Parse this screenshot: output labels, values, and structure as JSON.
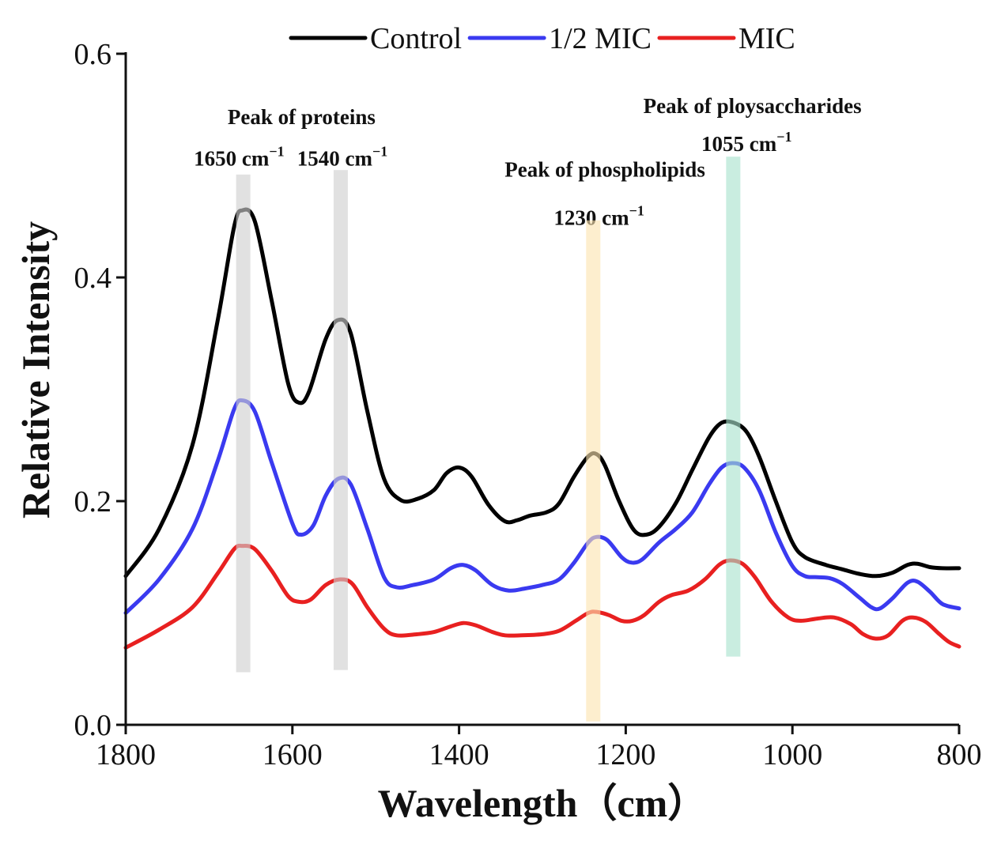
{
  "chart_data": {
    "type": "line",
    "title": "",
    "xlabel": "Wavelength（cm）",
    "ylabel": "Relative Intensity",
    "xlim": [
      1800,
      800
    ],
    "ylim": [
      0,
      0.6
    ],
    "xticks": [
      1800,
      1600,
      1400,
      1200,
      1000,
      800
    ],
    "xtick_labels": [
      "1800",
      "1600",
      "1400",
      "1200",
      "1000",
      "800"
    ],
    "yticks": [
      0,
      0.2,
      0.4,
      0.6
    ],
    "ytick_labels": [
      "0.0",
      "0.2",
      "0.4",
      "0.6"
    ],
    "legend_position": "top",
    "series": [
      {
        "name": "Control",
        "color": "#000000",
        "points": [
          [
            1800,
            0.133
          ],
          [
            1760,
            0.175
          ],
          [
            1720,
            0.25
          ],
          [
            1690,
            0.36
          ],
          [
            1670,
            0.445
          ],
          [
            1660,
            0.46
          ],
          [
            1645,
            0.45
          ],
          [
            1625,
            0.38
          ],
          [
            1605,
            0.305
          ],
          [
            1592,
            0.288
          ],
          [
            1580,
            0.298
          ],
          [
            1560,
            0.345
          ],
          [
            1545,
            0.362
          ],
          [
            1530,
            0.35
          ],
          [
            1510,
            0.28
          ],
          [
            1490,
            0.22
          ],
          [
            1470,
            0.201
          ],
          [
            1450,
            0.202
          ],
          [
            1430,
            0.21
          ],
          [
            1415,
            0.225
          ],
          [
            1400,
            0.23
          ],
          [
            1385,
            0.222
          ],
          [
            1365,
            0.197
          ],
          [
            1345,
            0.182
          ],
          [
            1330,
            0.183
          ],
          [
            1315,
            0.187
          ],
          [
            1295,
            0.19
          ],
          [
            1280,
            0.198
          ],
          [
            1262,
            0.222
          ],
          [
            1245,
            0.24
          ],
          [
            1235,
            0.242
          ],
          [
            1225,
            0.232
          ],
          [
            1208,
            0.2
          ],
          [
            1190,
            0.174
          ],
          [
            1175,
            0.17
          ],
          [
            1160,
            0.177
          ],
          [
            1140,
            0.198
          ],
          [
            1120,
            0.228
          ],
          [
            1100,
            0.257
          ],
          [
            1085,
            0.27
          ],
          [
            1070,
            0.27
          ],
          [
            1055,
            0.262
          ],
          [
            1040,
            0.24
          ],
          [
            1020,
            0.2
          ],
          [
            1000,
            0.163
          ],
          [
            985,
            0.15
          ],
          [
            960,
            0.143
          ],
          [
            940,
            0.139
          ],
          [
            920,
            0.135
          ],
          [
            900,
            0.133
          ],
          [
            880,
            0.136
          ],
          [
            862,
            0.143
          ],
          [
            850,
            0.144
          ],
          [
            835,
            0.141
          ],
          [
            820,
            0.14
          ],
          [
            800,
            0.14
          ]
        ]
      },
      {
        "name": "1/2 MIC",
        "color": "#3a3af0",
        "points": [
          [
            1800,
            0.1
          ],
          [
            1760,
            0.13
          ],
          [
            1720,
            0.175
          ],
          [
            1690,
            0.235
          ],
          [
            1670,
            0.282
          ],
          [
            1660,
            0.29
          ],
          [
            1645,
            0.28
          ],
          [
            1625,
            0.235
          ],
          [
            1600,
            0.18
          ],
          [
            1590,
            0.17
          ],
          [
            1575,
            0.178
          ],
          [
            1560,
            0.205
          ],
          [
            1545,
            0.22
          ],
          [
            1530,
            0.215
          ],
          [
            1510,
            0.175
          ],
          [
            1490,
            0.132
          ],
          [
            1475,
            0.123
          ],
          [
            1455,
            0.125
          ],
          [
            1430,
            0.13
          ],
          [
            1410,
            0.14
          ],
          [
            1395,
            0.143
          ],
          [
            1380,
            0.138
          ],
          [
            1360,
            0.125
          ],
          [
            1340,
            0.12
          ],
          [
            1320,
            0.122
          ],
          [
            1300,
            0.125
          ],
          [
            1280,
            0.13
          ],
          [
            1262,
            0.145
          ],
          [
            1245,
            0.163
          ],
          [
            1235,
            0.168
          ],
          [
            1222,
            0.165
          ],
          [
            1205,
            0.15
          ],
          [
            1193,
            0.145
          ],
          [
            1180,
            0.148
          ],
          [
            1160,
            0.163
          ],
          [
            1140,
            0.175
          ],
          [
            1120,
            0.19
          ],
          [
            1100,
            0.215
          ],
          [
            1085,
            0.23
          ],
          [
            1072,
            0.234
          ],
          [
            1058,
            0.23
          ],
          [
            1040,
            0.21
          ],
          [
            1020,
            0.172
          ],
          [
            1000,
            0.142
          ],
          [
            985,
            0.133
          ],
          [
            970,
            0.132
          ],
          [
            955,
            0.131
          ],
          [
            940,
            0.126
          ],
          [
            920,
            0.114
          ],
          [
            905,
            0.105
          ],
          [
            895,
            0.104
          ],
          [
            880,
            0.113
          ],
          [
            862,
            0.127
          ],
          [
            850,
            0.128
          ],
          [
            835,
            0.119
          ],
          [
            820,
            0.108
          ],
          [
            800,
            0.104
          ]
        ]
      },
      {
        "name": "MIC",
        "color": "#e82020",
        "points": [
          [
            1800,
            0.069
          ],
          [
            1760,
            0.085
          ],
          [
            1720,
            0.105
          ],
          [
            1690,
            0.135
          ],
          [
            1670,
            0.157
          ],
          [
            1660,
            0.16
          ],
          [
            1645,
            0.157
          ],
          [
            1625,
            0.138
          ],
          [
            1605,
            0.115
          ],
          [
            1592,
            0.11
          ],
          [
            1578,
            0.112
          ],
          [
            1560,
            0.125
          ],
          [
            1543,
            0.13
          ],
          [
            1528,
            0.126
          ],
          [
            1510,
            0.105
          ],
          [
            1490,
            0.086
          ],
          [
            1475,
            0.08
          ],
          [
            1450,
            0.081
          ],
          [
            1430,
            0.083
          ],
          [
            1410,
            0.088
          ],
          [
            1395,
            0.091
          ],
          [
            1380,
            0.089
          ],
          [
            1360,
            0.083
          ],
          [
            1345,
            0.08
          ],
          [
            1325,
            0.08
          ],
          [
            1300,
            0.081
          ],
          [
            1280,
            0.084
          ],
          [
            1260,
            0.093
          ],
          [
            1245,
            0.1
          ],
          [
            1235,
            0.101
          ],
          [
            1220,
            0.098
          ],
          [
            1205,
            0.093
          ],
          [
            1192,
            0.093
          ],
          [
            1178,
            0.098
          ],
          [
            1160,
            0.11
          ],
          [
            1145,
            0.116
          ],
          [
            1125,
            0.12
          ],
          [
            1105,
            0.13
          ],
          [
            1088,
            0.143
          ],
          [
            1075,
            0.147
          ],
          [
            1060,
            0.144
          ],
          [
            1045,
            0.132
          ],
          [
            1025,
            0.11
          ],
          [
            1005,
            0.096
          ],
          [
            990,
            0.093
          ],
          [
            970,
            0.095
          ],
          [
            950,
            0.096
          ],
          [
            930,
            0.09
          ],
          [
            915,
            0.081
          ],
          [
            900,
            0.077
          ],
          [
            885,
            0.08
          ],
          [
            868,
            0.093
          ],
          [
            855,
            0.096
          ],
          [
            840,
            0.092
          ],
          [
            825,
            0.082
          ],
          [
            812,
            0.074
          ],
          [
            800,
            0.07
          ]
        ]
      }
    ],
    "highlight_bands": [
      {
        "x": 1659,
        "y_from": 0.047,
        "y_to": 0.492,
        "color": "#cfcfcf"
      },
      {
        "x": 1542,
        "y_from": 0.049,
        "y_to": 0.496,
        "color": "#cfcfcf"
      },
      {
        "x": 1239,
        "y_from": 0.003,
        "y_to": 0.451,
        "color": "#fbe3b0"
      },
      {
        "x": 1071,
        "y_from": 0.061,
        "y_to": 0.508,
        "color": "#a8e2cd"
      }
    ],
    "annotations": [
      {
        "lines": [
          "Peak of proteins"
        ],
        "x": 1589,
        "y": 0.537
      },
      {
        "lines": [
          "1650 cm",
          "−1"
        ],
        "x": 1664,
        "y": 0.5,
        "sup": true
      },
      {
        "lines": [
          "1540 cm",
          "−1"
        ],
        "x": 1540,
        "y": 0.5,
        "sup": true
      },
      {
        "lines": [
          "Peak of phospholipids"
        ],
        "x": 1225,
        "y": 0.49
      },
      {
        "lines": [
          "1230 cm",
          "−1"
        ],
        "x": 1232,
        "y": 0.447,
        "sup": true
      },
      {
        "lines": [
          "Peak of ploysaccharides"
        ],
        "x": 1048,
        "y": 0.547
      },
      {
        "lines": [
          "1055 cm",
          "−1"
        ],
        "x": 1055,
        "y": 0.513,
        "sup": true
      }
    ]
  }
}
